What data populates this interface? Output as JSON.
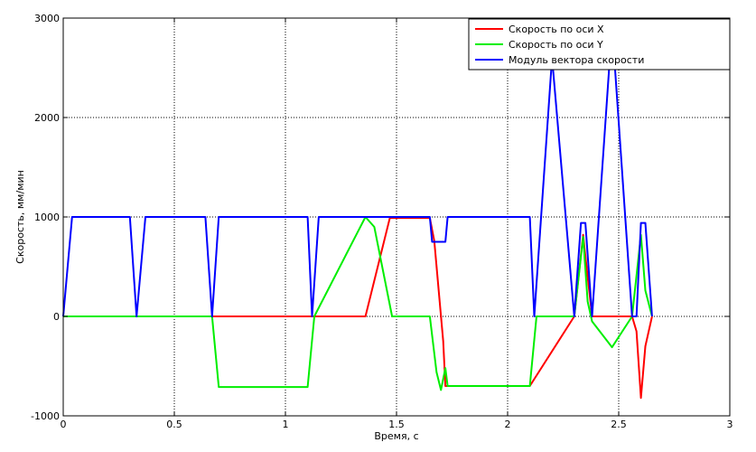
{
  "chart_data": {
    "type": "line",
    "title": "",
    "xlabel": "Время, с",
    "ylabel": "Скорость, мм/мин",
    "xlim": [
      0,
      3
    ],
    "ylim": [
      -1000,
      3000
    ],
    "x_ticks": [
      0,
      0.5,
      1,
      1.5,
      2,
      2.5,
      3
    ],
    "x_tick_labels": [
      "0",
      "0.5",
      "1",
      "1.5",
      "2",
      "2.5",
      "3"
    ],
    "y_ticks": [
      -1000,
      0,
      1000,
      2000,
      3000
    ],
    "y_tick_labels": [
      "-1000",
      "0",
      "1000",
      "2000",
      "3000"
    ],
    "grid": true,
    "legend_position": "top-right",
    "series": [
      {
        "name": "Скорость по оси X",
        "color": "#ff0000",
        "x": [
          0,
          1.36,
          1.47,
          1.65,
          1.67,
          1.71,
          1.72,
          1.73,
          2.1,
          2.3,
          2.34,
          2.36,
          2.38,
          2.56,
          2.58,
          2.6,
          2.62,
          2.65
        ],
        "y": [
          0,
          0,
          990,
          990,
          760,
          -250,
          -700,
          -700,
          -700,
          0,
          820,
          400,
          0,
          0,
          -150,
          -820,
          -300,
          0
        ]
      },
      {
        "name": "Скорость по оси Y",
        "color": "#00ee00",
        "x": [
          0,
          0.33,
          0.67,
          0.7,
          1.1,
          1.13,
          1.36,
          1.4,
          1.48,
          1.65,
          1.68,
          1.7,
          1.72,
          1.73,
          2.1,
          2.13,
          2.3,
          2.34,
          2.36,
          2.38,
          2.47,
          2.56,
          2.6,
          2.62,
          2.65
        ],
        "y": [
          0,
          0,
          0,
          -710,
          -710,
          0,
          1000,
          900,
          0,
          0,
          -560,
          -740,
          -520,
          -700,
          -700,
          0,
          0,
          800,
          150,
          -50,
          -310,
          0,
          820,
          260,
          0
        ]
      },
      {
        "name": "Модуль вектора скорости",
        "color": "#0000ff",
        "x": [
          0,
          0.04,
          0.3,
          0.33,
          0.37,
          0.64,
          0.67,
          0.7,
          1.1,
          1.12,
          1.15,
          1.65,
          1.66,
          1.72,
          1.73,
          2.1,
          2.12,
          2.2,
          2.3,
          2.33,
          2.35,
          2.38,
          2.46,
          2.48,
          2.56,
          2.58,
          2.6,
          2.62,
          2.65
        ],
        "y": [
          0,
          1000,
          1000,
          0,
          1000,
          1000,
          0,
          1000,
          1000,
          0,
          1000,
          1000,
          750,
          750,
          1000,
          1000,
          0,
          2600,
          0,
          940,
          940,
          0,
          2600,
          2600,
          0,
          0,
          940,
          940,
          0
        ]
      }
    ]
  }
}
